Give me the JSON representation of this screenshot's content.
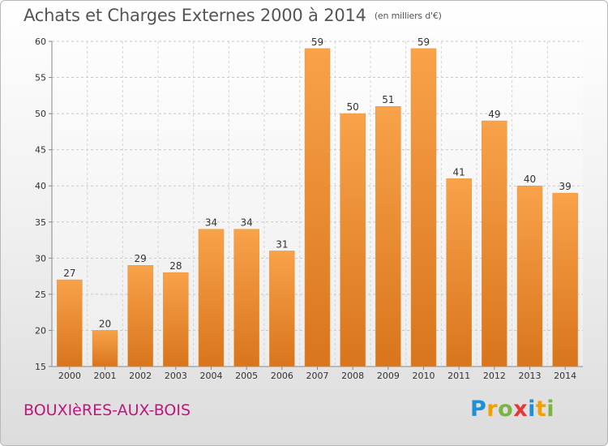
{
  "header": {
    "title": "Achats et Charges Externes 2000 à 2014",
    "unit": "(en milliers d'€)"
  },
  "footer": {
    "commune": "BOUXIèRES-AUX-BOIS",
    "logo_letters": [
      {
        "ch": "P",
        "color": "#1f8fd6"
      },
      {
        "ch": "r",
        "color": "#f2a100"
      },
      {
        "ch": "o",
        "color": "#7cb342"
      },
      {
        "ch": "x",
        "color": "#e53935"
      },
      {
        "ch": "i",
        "color": "#1f8fd6"
      },
      {
        "ch": "t",
        "color": "#f2a100"
      },
      {
        "ch": "i",
        "color": "#7cb342"
      }
    ]
  },
  "chart_data": {
    "type": "bar",
    "title": "Achats et Charges Externes 2000 à 2014",
    "unit": "(en milliers d'€)",
    "categories": [
      "2000",
      "2001",
      "2002",
      "2003",
      "2004",
      "2005",
      "2006",
      "2007",
      "2008",
      "2009",
      "2010",
      "2011",
      "2012",
      "2013",
      "2014"
    ],
    "values": [
      27,
      20,
      29,
      28,
      34,
      34,
      31,
      59,
      50,
      51,
      59,
      41,
      49,
      40,
      39
    ],
    "ylim": [
      15,
      60
    ],
    "yticks": [
      15,
      20,
      25,
      30,
      35,
      40,
      45,
      50,
      55,
      60
    ],
    "grid": true,
    "bar_color": "#f59a3c",
    "bar_color_dark": "#d9751c"
  }
}
